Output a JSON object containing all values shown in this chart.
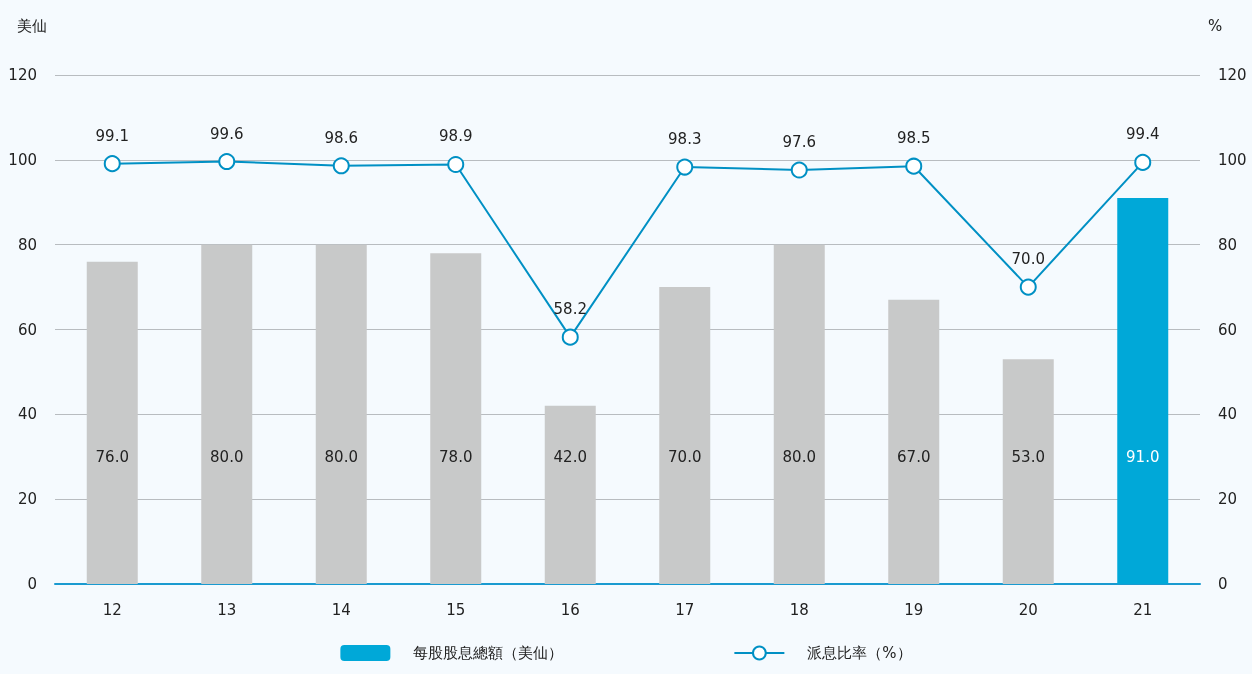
{
  "chart_data": {
    "type": "bar",
    "ylabel": "美仙",
    "y2label": "%",
    "categories": [
      "12",
      "13",
      "14",
      "15",
      "16",
      "17",
      "18",
      "19",
      "20",
      "21"
    ],
    "series": [
      {
        "name": "每股股息總額（美仙）",
        "color": "#00a8d8",
        "colors": [
          "#c8c9c9",
          "#c8c9c9",
          "#c8c9c9",
          "#c8c9c9",
          "#c8c9c9",
          "#c8c9c9",
          "#c8c9c9",
          "#c8c9c9",
          "#c8c9c9",
          "#00a8d8"
        ],
        "values": [
          76,
          80,
          80,
          78,
          42,
          70,
          80,
          67,
          53,
          91
        ],
        "value_labels": [
          "76.0",
          "80.0",
          "80.0",
          "78.0",
          "42.0",
          "70.0",
          "80.0",
          "67.0",
          "53.0",
          "91.0"
        ]
      },
      {
        "name": "派息比率（%）",
        "type": "line",
        "axis": "y2",
        "color": "#0090c4",
        "marker": "circle",
        "values": [
          99.1,
          99.6,
          98.6,
          98.9,
          58.2,
          98.3,
          97.6,
          98.5,
          70,
          99.4
        ],
        "value_labels": [
          "99.1",
          "99.6",
          "98.6",
          "98.9",
          "58.2",
          "98.3",
          "97.6",
          "98.5",
          "70.0",
          "99.4"
        ]
      }
    ],
    "ylim": [
      0,
      120
    ],
    "yticks": [
      0,
      20,
      40,
      60,
      80,
      100,
      120
    ],
    "y2lim": [
      0,
      120
    ],
    "y2ticks": [
      0,
      20,
      40,
      60,
      80,
      100,
      120
    ],
    "grid": "y",
    "legend": "bottom"
  }
}
